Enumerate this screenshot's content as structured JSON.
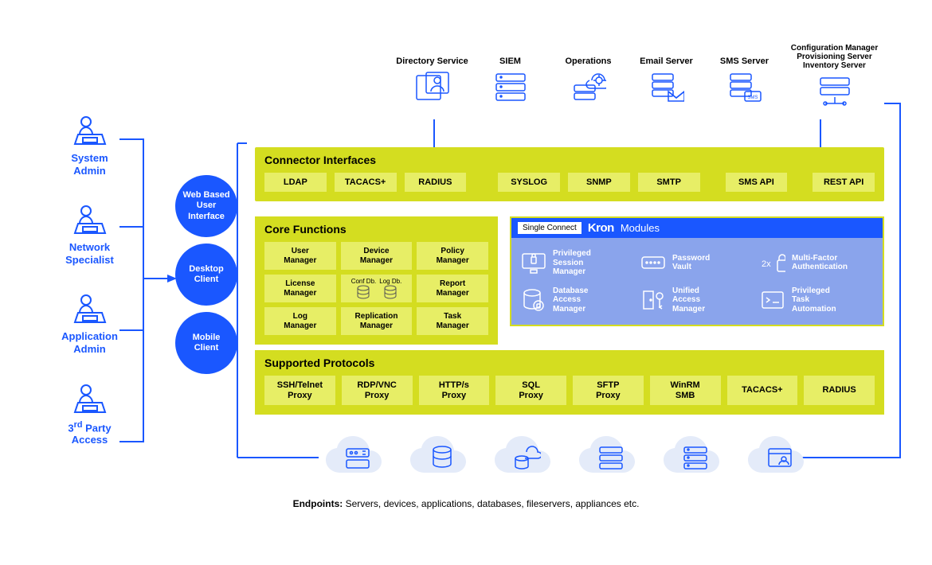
{
  "colors": {
    "brand_blue": "#1a57ff",
    "panel_green": "#d4dd20",
    "chip_green": "#e7ee66",
    "module_body": "#8aa4ec",
    "cloud_bg": "#e4ebf9",
    "white": "#ffffff"
  },
  "users": [
    {
      "label": "System\nAdmin"
    },
    {
      "label": "Network\nSpecialist"
    },
    {
      "label": "Application\nAdmin"
    },
    {
      "label": "3rd Party\nAccess",
      "sup": "rd"
    }
  ],
  "clients": [
    {
      "label": "Web Based\nUser\nInterface"
    },
    {
      "label": "Desktop\nClient"
    },
    {
      "label": "Mobile\nClient"
    }
  ],
  "top_services": [
    {
      "label": "Directory Service"
    },
    {
      "label": "SIEM"
    },
    {
      "label": "Operations"
    },
    {
      "label": "Email Server"
    },
    {
      "label": "SMS Server"
    },
    {
      "label": "Configuration Manager\nProvisioning Server\nInventory Server"
    }
  ],
  "connector_interfaces": {
    "title": "Connector Interfaces",
    "items": [
      "LDAP",
      "TACACS+",
      "RADIUS",
      "SYSLOG",
      "SNMP",
      "SMTP",
      "SMS API",
      "REST API"
    ]
  },
  "core_functions": {
    "title": "Core Functions",
    "items": [
      "User\nManager",
      "Device\nManager",
      "Policy\nManager",
      "License\nManager",
      "_db_",
      "Report\nManager",
      "Log\nManager",
      "Replication\nManager",
      "Task\nManager"
    ],
    "db_labels": {
      "conf": "Conf Db.",
      "log": "Log Db."
    }
  },
  "modules": {
    "badge": "Single Connect",
    "brand": "Kron",
    "title": "Modules",
    "items": [
      {
        "label": "Privileged\nSession\nManager"
      },
      {
        "label": "Password\nVault"
      },
      {
        "label": "Multi-Factor\nAuthentication",
        "prefix": "2x"
      },
      {
        "label": "Database\nAccess\nManager"
      },
      {
        "label": "Unified\nAccess\nManager"
      },
      {
        "label": "Privileged\nTask\nAutomation"
      }
    ]
  },
  "supported_protocols": {
    "title": "Supported Protocols",
    "items": [
      "SSH/Telnet\nProxy",
      "RDP/VNC\nProxy",
      "HTTP/s\nProxy",
      "SQL\nProxy",
      "SFTP\nProxy",
      "WinRM\nSMB",
      "TACACS+",
      "RADIUS"
    ]
  },
  "endpoints": {
    "caption_bold": "Endpoints:",
    "caption_rest": " Servers, devices, applications, databases, fileservers, appliances etc.",
    "icons": [
      "network",
      "database",
      "dbcloud",
      "server1",
      "server2",
      "browser"
    ]
  }
}
